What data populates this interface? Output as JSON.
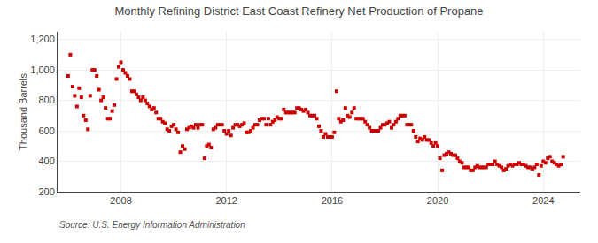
{
  "chart_data": {
    "type": "scatter",
    "title": "Monthly Refining District East Coast Refinery Net Production of Propane",
    "ylabel": "Thousand Barrels",
    "annotations": [
      "Source: U.S. Energy Information Administration"
    ],
    "color": "#cc0000",
    "marker": "square",
    "grid": true,
    "xlim": [
      2005.6,
      2025.4
    ],
    "xticks": [
      2008,
      2012,
      2016,
      2020,
      2024
    ],
    "ylim": [
      200,
      1250
    ],
    "yticks": [
      200,
      400,
      600,
      800,
      {
        "value": 1000,
        "label": "1,000"
      },
      {
        "value": 1200,
        "label": "1,200"
      }
    ],
    "x": [
      2006.0,
      2006.083,
      2006.167,
      2006.25,
      2006.333,
      2006.417,
      2006.5,
      2006.583,
      2006.667,
      2006.75,
      2006.833,
      2006.917,
      2007.0,
      2007.083,
      2007.167,
      2007.25,
      2007.333,
      2007.417,
      2007.5,
      2007.583,
      2007.667,
      2007.75,
      2007.833,
      2007.917,
      2008.0,
      2008.083,
      2008.167,
      2008.25,
      2008.333,
      2008.417,
      2008.5,
      2008.583,
      2008.667,
      2008.75,
      2008.833,
      2008.917,
      2009.0,
      2009.083,
      2009.167,
      2009.25,
      2009.333,
      2009.417,
      2009.5,
      2009.583,
      2009.667,
      2009.75,
      2009.833,
      2009.917,
      2010.0,
      2010.083,
      2010.167,
      2010.25,
      2010.333,
      2010.417,
      2010.5,
      2010.583,
      2010.667,
      2010.75,
      2010.833,
      2010.917,
      2011.0,
      2011.083,
      2011.167,
      2011.25,
      2011.333,
      2011.417,
      2011.5,
      2011.583,
      2011.667,
      2011.75,
      2011.833,
      2011.917,
      2012.0,
      2012.083,
      2012.167,
      2012.25,
      2012.333,
      2012.417,
      2012.5,
      2012.583,
      2012.667,
      2012.75,
      2012.833,
      2012.917,
      2013.0,
      2013.083,
      2013.167,
      2013.25,
      2013.333,
      2013.417,
      2013.5,
      2013.583,
      2013.667,
      2013.75,
      2013.833,
      2013.917,
      2014.0,
      2014.083,
      2014.167,
      2014.25,
      2014.333,
      2014.417,
      2014.5,
      2014.583,
      2014.667,
      2014.75,
      2014.833,
      2014.917,
      2015.0,
      2015.083,
      2015.167,
      2015.25,
      2015.333,
      2015.417,
      2015.5,
      2015.583,
      2015.667,
      2015.75,
      2015.833,
      2015.917,
      2016.0,
      2016.083,
      2016.167,
      2016.25,
      2016.333,
      2016.417,
      2016.5,
      2016.583,
      2016.667,
      2016.75,
      2016.833,
      2016.917,
      2017.0,
      2017.083,
      2017.167,
      2017.25,
      2017.333,
      2017.417,
      2017.5,
      2017.583,
      2017.667,
      2017.75,
      2017.833,
      2017.917,
      2018.0,
      2018.083,
      2018.167,
      2018.25,
      2018.333,
      2018.417,
      2018.5,
      2018.583,
      2018.667,
      2018.75,
      2018.833,
      2018.917,
      2019.0,
      2019.083,
      2019.167,
      2019.25,
      2019.333,
      2019.417,
      2019.5,
      2019.583,
      2019.667,
      2019.75,
      2019.833,
      2019.917,
      2020.0,
      2020.083,
      2020.167,
      2020.25,
      2020.333,
      2020.417,
      2020.5,
      2020.583,
      2020.667,
      2020.75,
      2020.833,
      2020.917,
      2021.0,
      2021.083,
      2021.167,
      2021.25,
      2021.333,
      2021.417,
      2021.5,
      2021.583,
      2021.667,
      2021.75,
      2021.833,
      2021.917,
      2022.0,
      2022.083,
      2022.167,
      2022.25,
      2022.333,
      2022.417,
      2022.5,
      2022.583,
      2022.667,
      2022.75,
      2022.833,
      2022.917,
      2023.0,
      2023.083,
      2023.167,
      2023.25,
      2023.333,
      2023.417,
      2023.5,
      2023.583,
      2023.667,
      2023.75,
      2023.833,
      2023.917,
      2024.0,
      2024.083,
      2024.167,
      2024.25,
      2024.333,
      2024.417,
      2024.5,
      2024.583,
      2024.667,
      2024.75
    ],
    "values": [
      960,
      1100,
      890,
      830,
      760,
      880,
      820,
      700,
      670,
      610,
      830,
      1000,
      1000,
      960,
      870,
      800,
      820,
      750,
      680,
      680,
      730,
      770,
      940,
      1020,
      1050,
      1000,
      980,
      960,
      940,
      860,
      860,
      840,
      820,
      800,
      820,
      800,
      780,
      760,
      740,
      750,
      720,
      680,
      680,
      660,
      650,
      610,
      600,
      630,
      640,
      610,
      590,
      460,
      500,
      480,
      610,
      620,
      630,
      620,
      640,
      620,
      640,
      640,
      420,
      500,
      510,
      490,
      610,
      620,
      640,
      640,
      640,
      600,
      580,
      600,
      570,
      620,
      640,
      640,
      630,
      640,
      650,
      590,
      590,
      600,
      620,
      640,
      640,
      670,
      680,
      680,
      640,
      680,
      640,
      660,
      670,
      690,
      680,
      680,
      740,
      720,
      720,
      720,
      720,
      720,
      750,
      750,
      740,
      730,
      740,
      720,
      700,
      700,
      700,
      680,
      630,
      600,
      560,
      580,
      560,
      560,
      560,
      590,
      860,
      680,
      660,
      670,
      750,
      700,
      690,
      720,
      750,
      680,
      680,
      680,
      680,
      660,
      640,
      620,
      600,
      600,
      600,
      600,
      620,
      640,
      640,
      650,
      660,
      620,
      640,
      660,
      680,
      700,
      700,
      700,
      640,
      640,
      640,
      600,
      560,
      530,
      550,
      540,
      560,
      540,
      540,
      520,
      500,
      520,
      500,
      420,
      340,
      440,
      450,
      460,
      450,
      440,
      440,
      420,
      400,
      390,
      360,
      360,
      360,
      340,
      340,
      360,
      370,
      360,
      360,
      360,
      360,
      380,
      380,
      380,
      400,
      380,
      370,
      360,
      340,
      350,
      370,
      380,
      370,
      380,
      380,
      390,
      380,
      380,
      370,
      360,
      360,
      350,
      360,
      380,
      310,
      370,
      400,
      390,
      420,
      430,
      400,
      390,
      380,
      370,
      380,
      430
    ]
  }
}
